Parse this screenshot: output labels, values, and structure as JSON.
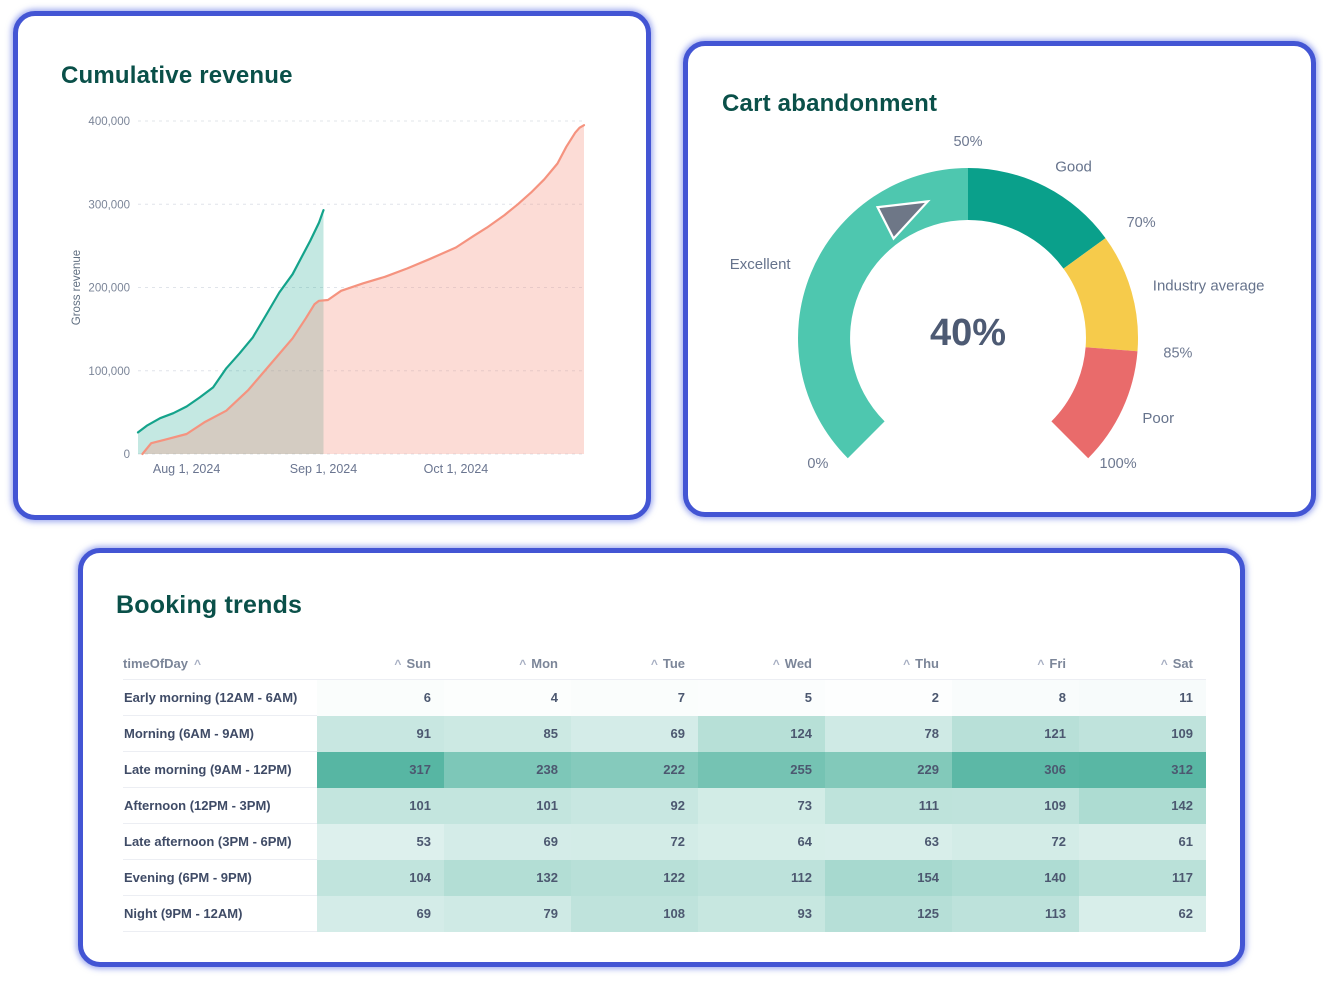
{
  "theme": {
    "background": "#ffffff",
    "card_border_color": "#4355d4",
    "title_color": "#0a5049"
  },
  "cards": {
    "revenue": {
      "title": "Cumulative revenue"
    },
    "gauge": {
      "title": "Cart abandonment"
    },
    "booking": {
      "title": "Booking trends"
    }
  },
  "chart_data": [
    {
      "type": "area",
      "title": "Cumulative revenue",
      "xlabel": "",
      "ylabel": "Gross revenue",
      "ylim": [
        0,
        400000
      ],
      "grid": "dashed horizontal gridlines",
      "legend": "none",
      "y_ticks": [
        {
          "value": 0,
          "label": "0"
        },
        {
          "value": 100000,
          "label": "100,000"
        },
        {
          "value": 200000,
          "label": "200,000"
        },
        {
          "value": 300000,
          "label": "300,000"
        },
        {
          "value": 400000,
          "label": "400,000"
        }
      ],
      "x_ticks": [
        {
          "date": "2024-08-01",
          "label": "Aug 1, 2024"
        },
        {
          "date": "2024-09-01",
          "label": "Sep 1, 2024"
        },
        {
          "date": "2024-10-01",
          "label": "Oct 1, 2024"
        }
      ],
      "series": [
        {
          "name": "teal-area",
          "color": "#14a38b",
          "fill": "rgba(20,163,139,0.25)",
          "points": [
            [
              "2024-07-21",
              26000
            ],
            [
              "2024-07-23",
              34000
            ],
            [
              "2024-07-26",
              43000
            ],
            [
              "2024-07-29",
              49000
            ],
            [
              "2024-08-01",
              57000
            ],
            [
              "2024-08-04",
              68000
            ],
            [
              "2024-08-07",
              80000
            ],
            [
              "2024-08-10",
              103000
            ],
            [
              "2024-08-13",
              121000
            ],
            [
              "2024-08-16",
              140000
            ],
            [
              "2024-08-19",
              167000
            ],
            [
              "2024-08-22",
              194000
            ],
            [
              "2024-08-25",
              216000
            ],
            [
              "2024-08-27",
              236000
            ],
            [
              "2024-08-29",
              256000
            ],
            [
              "2024-08-31",
              278000
            ],
            [
              "2024-09-01",
              293000
            ]
          ]
        },
        {
          "name": "salmon-area",
          "color": "#f5937f",
          "fill": "rgba(245,147,127,0.32)",
          "points": [
            [
              "2024-07-22",
              0
            ],
            [
              "2024-07-24",
              13000
            ],
            [
              "2024-07-27",
              17000
            ],
            [
              "2024-08-01",
              24000
            ],
            [
              "2024-08-05",
              38000
            ],
            [
              "2024-08-10",
              52000
            ],
            [
              "2024-08-15",
              77000
            ],
            [
              "2024-08-20",
              108000
            ],
            [
              "2024-08-25",
              139000
            ],
            [
              "2024-08-28",
              163000
            ],
            [
              "2024-08-30",
              180000
            ],
            [
              "2024-08-31",
              184000
            ],
            [
              "2024-09-02",
              185000
            ],
            [
              "2024-09-05",
              196000
            ],
            [
              "2024-09-10",
              205000
            ],
            [
              "2024-09-15",
              213000
            ],
            [
              "2024-09-20",
              223000
            ],
            [
              "2024-09-25",
              234000
            ],
            [
              "2024-10-01",
              248000
            ],
            [
              "2024-10-05",
              262000
            ],
            [
              "2024-10-08",
              272000
            ],
            [
              "2024-10-12",
              287000
            ],
            [
              "2024-10-15",
              300000
            ],
            [
              "2024-10-18",
              314000
            ],
            [
              "2024-10-21",
              330000
            ],
            [
              "2024-10-24",
              349000
            ],
            [
              "2024-10-26",
              369000
            ],
            [
              "2024-10-28",
              386000
            ],
            [
              "2024-10-29",
              392000
            ],
            [
              "2024-10-30",
              395000
            ]
          ]
        }
      ]
    },
    {
      "type": "gauge",
      "title": "Cart abandonment",
      "value": 40,
      "value_label": "40%",
      "value_color": "#4d5a73",
      "min": 0,
      "max": 100,
      "start_angle": -135,
      "end_angle": 135,
      "needle_color": "#6e7787",
      "segments": [
        {
          "label": "Excellent",
          "from": 0,
          "to": 50,
          "color": "#4ec7af"
        },
        {
          "label": "Good",
          "from": 50,
          "to": 70,
          "color": "#0aa08b"
        },
        {
          "label": "Industry average",
          "from": 70,
          "to": 85,
          "color": "#f6cb4b"
        },
        {
          "label": "Poor",
          "from": 85,
          "to": 100,
          "color": "#e96b6b"
        }
      ],
      "tick_labels": [
        {
          "pos": 0,
          "text": "0%"
        },
        {
          "pos": 50,
          "text": "50%"
        },
        {
          "pos": 70,
          "text": "70%"
        },
        {
          "pos": 85,
          "text": "85%"
        },
        {
          "pos": 100,
          "text": "100%"
        }
      ]
    },
    {
      "type": "heatmap-table",
      "title": "Booking trends",
      "sort_caret": "^",
      "columns": [
        "timeOfDay",
        "Sun",
        "Mon",
        "Tue",
        "Wed",
        "Thu",
        "Fri",
        "Sat"
      ],
      "rows": [
        {
          "label": "Early morning (12AM - 6AM)",
          "values": [
            6,
            4,
            7,
            5,
            2,
            8,
            11
          ]
        },
        {
          "label": "Morning (6AM - 9AM)",
          "values": [
            91,
            85,
            69,
            124,
            78,
            121,
            109
          ]
        },
        {
          "label": "Late morning (9AM - 12PM)",
          "values": [
            317,
            238,
            222,
            255,
            229,
            306,
            312
          ]
        },
        {
          "label": "Afternoon (12PM - 3PM)",
          "values": [
            101,
            101,
            92,
            73,
            111,
            109,
            142
          ]
        },
        {
          "label": "Late afternoon (3PM - 6PM)",
          "values": [
            53,
            69,
            72,
            64,
            63,
            72,
            61
          ]
        },
        {
          "label": "Evening (6PM - 9PM)",
          "values": [
            104,
            132,
            122,
            112,
            154,
            140,
            117
          ]
        },
        {
          "label": "Night (9PM - 12AM)",
          "values": [
            69,
            79,
            108,
            93,
            125,
            113,
            62
          ]
        }
      ],
      "heat_min_color": "#ffffff",
      "heat_max_color": "#57b6a3",
      "heat_max_value": 317
    }
  ]
}
